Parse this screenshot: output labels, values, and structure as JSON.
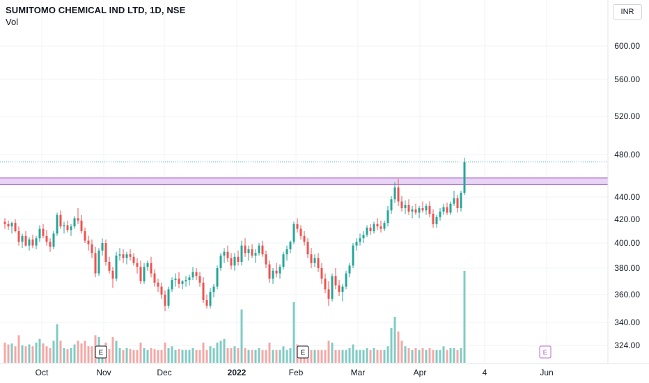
{
  "header": {
    "title": "SUMITOMO CHEMICAL IND LTD, 1D, NSE",
    "volume_label": "Vol"
  },
  "currency_button": "INR",
  "colors": {
    "up": "#26a69a",
    "down": "#ef5350",
    "up_volume": "#80cbc4",
    "down_volume": "#f4a8a6",
    "zone_fill": "#e9d4f5",
    "zone_border": "#8a3fb3",
    "grid": "#f0f3fa",
    "future_event": "#ba68c8"
  },
  "chart_data": {
    "type": "candlestick",
    "title": "SUMITOMO CHEMICAL IND LTD, 1D, NSE",
    "y_axis": {
      "ticks": [
        600,
        560,
        520,
        480,
        440,
        420,
        400,
        380,
        360,
        340,
        324
      ],
      "tick_labels": [
        "600.00",
        "560.00",
        "520.00",
        "480.00",
        "440.00",
        "420.00",
        "400.00",
        "380.00",
        "360.00",
        "340.00",
        "324.00"
      ],
      "scale": "log",
      "range": [
        320,
        640
      ]
    },
    "x_axis": {
      "tick_labels": [
        "Oct",
        "Nov",
        "Dec",
        "2022",
        "Feb",
        "Mar",
        "Apr",
        "4",
        "Jun"
      ],
      "bold_labels": [
        "2022"
      ]
    },
    "grid": true,
    "resistance_zone": {
      "low": 452,
      "high": 458
    },
    "last_price": 473,
    "event_markers": [
      {
        "label": "E",
        "date": "Nov",
        "future": false
      },
      {
        "label": "E",
        "date": "Feb",
        "future": false
      },
      {
        "label": "E",
        "date": "Jun",
        "future": true
      }
    ],
    "candles": [
      [
        418,
        421,
        412,
        416,
        1
      ],
      [
        416,
        419,
        411,
        414,
        1
      ],
      [
        414,
        418,
        408,
        417,
        1
      ],
      [
        417,
        420,
        409,
        410,
        1
      ],
      [
        410,
        414,
        398,
        401,
        2
      ],
      [
        401,
        408,
        396,
        406,
        1
      ],
      [
        406,
        410,
        397,
        398,
        1
      ],
      [
        398,
        405,
        394,
        403,
        1
      ],
      [
        403,
        407,
        396,
        398,
        1
      ],
      [
        398,
        406,
        395,
        404,
        1
      ],
      [
        404,
        415,
        401,
        412,
        2
      ],
      [
        412,
        416,
        404,
        406,
        1
      ],
      [
        406,
        411,
        398,
        401,
        1
      ],
      [
        401,
        404,
        393,
        397,
        1
      ],
      [
        397,
        410,
        395,
        408,
        2
      ],
      [
        408,
        426,
        406,
        424,
        4
      ],
      [
        424,
        428,
        412,
        414,
        2
      ],
      [
        414,
        418,
        408,
        415,
        1
      ],
      [
        415,
        419,
        409,
        411,
        1
      ],
      [
        411,
        416,
        406,
        414,
        1
      ],
      [
        414,
        423,
        412,
        421,
        1
      ],
      [
        421,
        430,
        416,
        419,
        2
      ],
      [
        419,
        424,
        408,
        410,
        1
      ],
      [
        410,
        413,
        400,
        402,
        2
      ],
      [
        402,
        406,
        394,
        399,
        1
      ],
      [
        399,
        403,
        388,
        392,
        1
      ],
      [
        392,
        397,
        373,
        376,
        3
      ],
      [
        376,
        396,
        374,
        394,
        3
      ],
      [
        394,
        404,
        390,
        400,
        1
      ],
      [
        400,
        403,
        382,
        385,
        2
      ],
      [
        385,
        389,
        376,
        378,
        1
      ],
      [
        378,
        381,
        365,
        372,
        3
      ],
      [
        372,
        393,
        370,
        390,
        2
      ],
      [
        390,
        396,
        386,
        391,
        1
      ],
      [
        391,
        395,
        384,
        388,
        1
      ],
      [
        388,
        393,
        383,
        391,
        1
      ],
      [
        391,
        395,
        386,
        389,
        1
      ],
      [
        389,
        392,
        382,
        384,
        1
      ],
      [
        384,
        388,
        376,
        381,
        1
      ],
      [
        381,
        386,
        368,
        370,
        2
      ],
      [
        370,
        384,
        368,
        381,
        1
      ],
      [
        381,
        386,
        378,
        384,
        1
      ],
      [
        384,
        389,
        373,
        376,
        1
      ],
      [
        376,
        379,
        366,
        369,
        1
      ],
      [
        369,
        372,
        362,
        366,
        1
      ],
      [
        366,
        369,
        357,
        360,
        1
      ],
      [
        360,
        363,
        348,
        352,
        2
      ],
      [
        352,
        366,
        350,
        364,
        1
      ],
      [
        364,
        373,
        362,
        371,
        1
      ],
      [
        371,
        376,
        366,
        372,
        1
      ],
      [
        372,
        377,
        365,
        368,
        1
      ],
      [
        368,
        371,
        364,
        370,
        1
      ],
      [
        370,
        374,
        366,
        371,
        1
      ],
      [
        371,
        375,
        367,
        373,
        1
      ],
      [
        373,
        381,
        371,
        377,
        1
      ],
      [
        377,
        380,
        371,
        374,
        1
      ],
      [
        374,
        377,
        366,
        369,
        1
      ],
      [
        369,
        373,
        354,
        356,
        2
      ],
      [
        356,
        360,
        350,
        352,
        1
      ],
      [
        352,
        365,
        350,
        362,
        1
      ],
      [
        362,
        368,
        358,
        366,
        1
      ],
      [
        366,
        382,
        364,
        380,
        2
      ],
      [
        380,
        392,
        378,
        390,
        2
      ],
      [
        390,
        396,
        384,
        393,
        2
      ],
      [
        393,
        398,
        385,
        388,
        1
      ],
      [
        388,
        392,
        379,
        382,
        1
      ],
      [
        382,
        392,
        378,
        389,
        1
      ],
      [
        389,
        394,
        382,
        385,
        1
      ],
      [
        385,
        402,
        382,
        398,
        2
      ],
      [
        398,
        404,
        389,
        392,
        1
      ],
      [
        392,
        398,
        386,
        395,
        1
      ],
      [
        395,
        399,
        388,
        390,
        1
      ],
      [
        390,
        395,
        384,
        392,
        1
      ],
      [
        392,
        400,
        390,
        398,
        1
      ],
      [
        398,
        402,
        389,
        391,
        1
      ],
      [
        391,
        394,
        380,
        383,
        1
      ],
      [
        383,
        386,
        369,
        372,
        2
      ],
      [
        372,
        380,
        368,
        378,
        1
      ],
      [
        378,
        384,
        373,
        376,
        1
      ],
      [
        376,
        383,
        372,
        381,
        1
      ],
      [
        381,
        393,
        379,
        391,
        2
      ],
      [
        391,
        398,
        386,
        395,
        1
      ],
      [
        395,
        402,
        392,
        401,
        1
      ],
      [
        401,
        418,
        399,
        416,
        4
      ],
      [
        416,
        421,
        409,
        412,
        2
      ],
      [
        412,
        415,
        403,
        406,
        1
      ],
      [
        406,
        410,
        398,
        401,
        1
      ],
      [
        401,
        404,
        388,
        391,
        1
      ],
      [
        391,
        396,
        380,
        384,
        1
      ],
      [
        384,
        391,
        381,
        388,
        1
      ],
      [
        388,
        392,
        377,
        380,
        1
      ],
      [
        380,
        384,
        368,
        372,
        1
      ],
      [
        372,
        376,
        361,
        364,
        1
      ],
      [
        364,
        370,
        352,
        357,
        2
      ],
      [
        357,
        376,
        355,
        374,
        2
      ],
      [
        374,
        380,
        364,
        367,
        1
      ],
      [
        367,
        371,
        359,
        362,
        1
      ],
      [
        362,
        368,
        355,
        366,
        1
      ],
      [
        366,
        378,
        364,
        376,
        1
      ],
      [
        376,
        384,
        373,
        382,
        2
      ],
      [
        382,
        400,
        380,
        398,
        2
      ],
      [
        398,
        404,
        394,
        401,
        1
      ],
      [
        401,
        408,
        398,
        404,
        1
      ],
      [
        404,
        410,
        400,
        407,
        1
      ],
      [
        407,
        415,
        405,
        413,
        1
      ],
      [
        413,
        416,
        407,
        410,
        1
      ],
      [
        410,
        418,
        408,
        416,
        1
      ],
      [
        416,
        421,
        411,
        414,
        1
      ],
      [
        414,
        419,
        409,
        412,
        1
      ],
      [
        412,
        419,
        410,
        417,
        1
      ],
      [
        417,
        432,
        414,
        428,
        2
      ],
      [
        428,
        441,
        425,
        438,
        5
      ],
      [
        438,
        454,
        435,
        449,
        3
      ],
      [
        449,
        457,
        432,
        436,
        2
      ],
      [
        436,
        441,
        427,
        430,
        1
      ],
      [
        430,
        437,
        425,
        433,
        1
      ],
      [
        433,
        438,
        424,
        427,
        1
      ],
      [
        427,
        432,
        421,
        429,
        1
      ],
      [
        429,
        434,
        424,
        426,
        1
      ],
      [
        426,
        432,
        421,
        430,
        1
      ],
      [
        430,
        436,
        426,
        428,
        1
      ],
      [
        428,
        434,
        424,
        432,
        1
      ],
      [
        432,
        436,
        422,
        425,
        1
      ],
      [
        425,
        429,
        413,
        416,
        1
      ],
      [
        416,
        424,
        413,
        422,
        1
      ],
      [
        422,
        430,
        419,
        427,
        1
      ],
      [
        427,
        434,
        424,
        431,
        2
      ],
      [
        431,
        435,
        424,
        426,
        1
      ],
      [
        426,
        436,
        424,
        434,
        1
      ],
      [
        434,
        446,
        432,
        439,
        1
      ],
      [
        439,
        442,
        426,
        430,
        1
      ],
      [
        430,
        446,
        427,
        444,
        2
      ],
      [
        444,
        477,
        442,
        473,
        18
      ]
    ],
    "volumes": [
      22,
      20,
      21,
      18,
      30,
      19,
      18,
      20,
      18,
      22,
      26,
      21,
      18,
      16,
      24,
      42,
      24,
      16,
      15,
      16,
      20,
      24,
      21,
      24,
      18,
      18,
      30,
      28,
      16,
      22,
      15,
      28,
      24,
      16,
      14,
      16,
      15,
      14,
      14,
      22,
      16,
      14,
      16,
      15,
      14,
      14,
      22,
      16,
      18,
      14,
      15,
      14,
      14,
      14,
      16,
      14,
      14,
      22,
      14,
      18,
      16,
      22,
      24,
      26,
      16,
      16,
      18,
      16,
      58,
      16,
      14,
      14,
      14,
      16,
      14,
      14,
      22,
      14,
      14,
      14,
      18,
      14,
      16,
      66,
      20,
      16,
      14,
      14,
      14,
      14,
      14,
      14,
      14,
      24,
      22,
      14,
      14,
      14,
      14,
      16,
      20,
      14,
      14,
      14,
      16,
      14,
      16,
      14,
      14,
      14,
      18,
      38,
      50,
      34,
      24,
      18,
      16,
      14,
      16,
      14,
      16,
      14,
      16,
      14,
      14,
      14,
      18,
      14,
      16,
      16,
      14,
      16,
      100
    ]
  }
}
